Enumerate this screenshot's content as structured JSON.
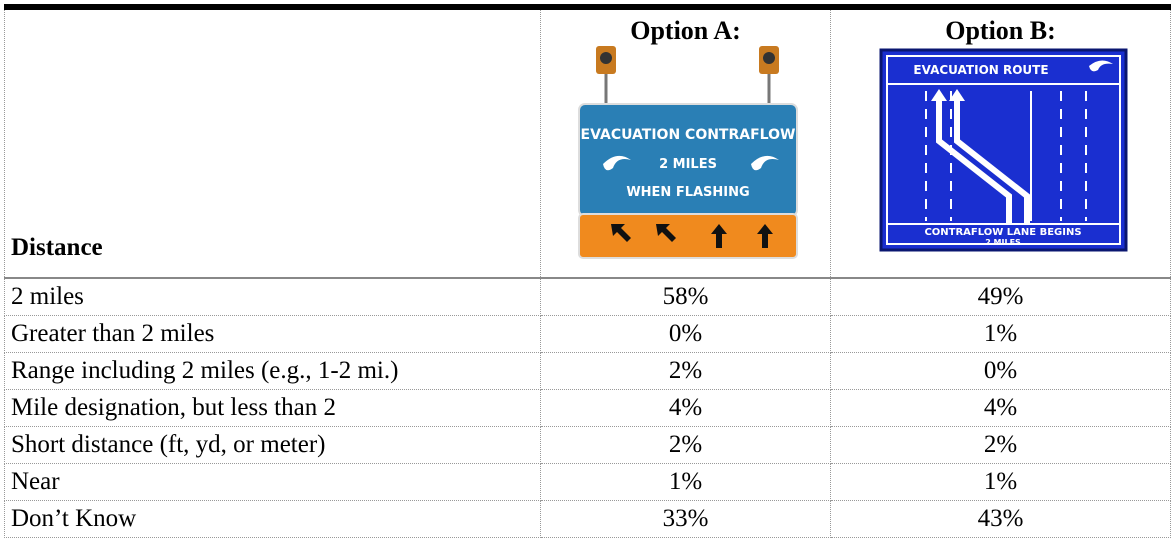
{
  "table": {
    "header": [
      "Distance",
      "Option A:",
      "Option B:"
    ],
    "sign_a": [
      "EVACUATION CONTRAFLOW",
      "2 MILES",
      "WHEN FLASHING"
    ],
    "sign_b": [
      "EVACUATION ROUTE",
      "CONTRAFLOW LANE BEGINS",
      "2 MILES"
    ],
    "rows": [
      [
        "2 miles",
        "58%",
        "49%"
      ],
      [
        "Greater than 2 miles",
        "0%",
        "1%"
      ],
      [
        "Range including 2 miles (e.g., 1-2 mi.)",
        "2%",
        "0%"
      ],
      [
        "Mile designation, but less than 2",
        "4%",
        "4%"
      ],
      [
        "Short distance (ft, yd, or meter)",
        "2%",
        "2%"
      ],
      [
        "Near",
        "1%",
        "1%"
      ],
      [
        "Don’t Know",
        "33%",
        "43%"
      ]
    ]
  }
}
